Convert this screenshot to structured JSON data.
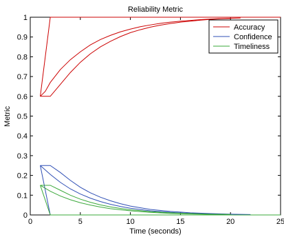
{
  "chart_data": {
    "type": "line",
    "title": "Reliability Metric",
    "xlabel": "Time (seconds)",
    "ylabel": "Metric",
    "xlim": [
      0,
      25
    ],
    "ylim": [
      0,
      1
    ],
    "xticks": [
      0,
      5,
      10,
      15,
      20,
      25
    ],
    "yticks": [
      0,
      0.1,
      0.2,
      0.3,
      0.4,
      0.5,
      0.6,
      0.7,
      0.8,
      0.9,
      1
    ],
    "grid": false,
    "legend": "top-right",
    "series": [
      {
        "name": "Accuracy",
        "color": "#cc0000",
        "lines": [
          {
            "x": [
              1,
              2,
              25
            ],
            "y": [
              0.6,
              1,
              1
            ]
          },
          {
            "x": [
              1,
              1.5,
              2,
              3,
              4,
              5,
              6,
              7,
              8,
              9,
              10,
              11,
              12,
              13,
              14,
              15,
              16,
              17,
              18,
              19,
              20,
              21
            ],
            "y": [
              0.6,
              0.625,
              0.67,
              0.735,
              0.785,
              0.825,
              0.86,
              0.887,
              0.908,
              0.926,
              0.94,
              0.952,
              0.961,
              0.969,
              0.975,
              0.98,
              0.984,
              0.988,
              0.991,
              0.993,
              0.995,
              0.996
            ]
          },
          {
            "x": [
              1,
              2,
              3,
              4,
              5,
              6,
              7,
              8,
              9,
              10,
              11,
              12,
              13,
              14,
              15,
              16,
              17,
              18,
              19,
              20
            ],
            "y": [
              0.6,
              0.6,
              0.66,
              0.72,
              0.772,
              0.815,
              0.85,
              0.878,
              0.902,
              0.922,
              0.937,
              0.95,
              0.96,
              0.968,
              0.975,
              0.98,
              0.985,
              0.989,
              0.992,
              0.994
            ]
          }
        ]
      },
      {
        "name": "Confidence",
        "color": "#2f4fb5",
        "lines": [
          {
            "x": [
              1,
              2
            ],
            "y": [
              0.25,
              0
            ]
          },
          {
            "x": [
              1,
              2,
              3,
              4,
              5,
              6,
              7,
              8,
              9,
              10,
              12,
              14,
              16,
              18,
              20,
              22
            ],
            "y": [
              0.25,
              0.25,
              0.215,
              0.175,
              0.14,
              0.112,
              0.09,
              0.072,
              0.057,
              0.045,
              0.028,
              0.018,
              0.011,
              0.007,
              0.004,
              0.002
            ]
          },
          {
            "x": [
              1,
              2,
              3,
              4,
              5,
              6,
              7,
              8,
              9,
              10,
              12,
              14,
              16,
              18,
              20
            ],
            "y": [
              0.25,
              0.205,
              0.165,
              0.132,
              0.106,
              0.085,
              0.068,
              0.054,
              0.043,
              0.034,
              0.021,
              0.013,
              0.008,
              0.005,
              0.003
            ]
          }
        ]
      },
      {
        "name": "Timeliness",
        "color": "#3aa83a",
        "lines": [
          {
            "x": [
              1,
              2,
              25
            ],
            "y": [
              0.15,
              0,
              0
            ]
          },
          {
            "x": [
              1,
              2,
              3,
              4,
              5,
              6,
              7,
              8,
              9,
              10,
              12,
              14,
              16,
              18,
              20
            ],
            "y": [
              0.15,
              0.15,
              0.125,
              0.1,
              0.08,
              0.064,
              0.051,
              0.041,
              0.033,
              0.026,
              0.017,
              0.011,
              0.007,
              0.004,
              0.002
            ]
          },
          {
            "x": [
              1,
              2,
              3,
              4,
              5,
              6,
              7,
              8,
              9,
              10,
              12,
              14,
              16,
              18,
              20
            ],
            "y": [
              0.15,
              0.12,
              0.096,
              0.077,
              0.062,
              0.05,
              0.04,
              0.032,
              0.026,
              0.021,
              0.013,
              0.008,
              0.005,
              0.003,
              0.002
            ]
          }
        ]
      }
    ]
  }
}
